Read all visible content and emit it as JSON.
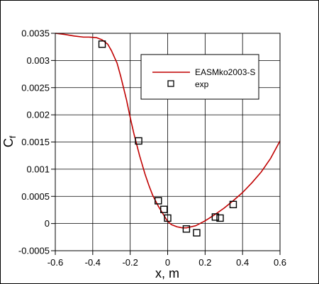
{
  "chart_data": {
    "type": "line",
    "xlabel": "x, m",
    "ylabel": "C",
    "ylabel_subscript": "f",
    "xlim": [
      -0.6,
      0.6
    ],
    "ylim": [
      -0.0005,
      0.0035
    ],
    "x_ticks": [
      -0.6,
      -0.4,
      -0.2,
      0,
      0.2,
      0.4,
      0.6
    ],
    "x_tick_labels": [
      "-0.6",
      "-0.4",
      "-0.2",
      "0",
      "0.2",
      "0.4",
      "0.6"
    ],
    "y_ticks": [
      -0.0005,
      0,
      0.0005,
      0.001,
      0.0015,
      0.002,
      0.0025,
      0.003,
      0.0035
    ],
    "y_tick_labels": [
      "-0.0005",
      "0",
      "0.0005",
      "0.001",
      "0.0015",
      "0.002",
      "0.0025",
      "0.003",
      "0.0035"
    ],
    "grid": true,
    "legend_position": "top-right",
    "series": [
      {
        "name": "EASMko2003-S",
        "kind": "line",
        "color": "#c00000",
        "x": [
          -0.6,
          -0.55,
          -0.5,
          -0.45,
          -0.42,
          -0.38,
          -0.35,
          -0.32,
          -0.3,
          -0.27,
          -0.25,
          -0.22,
          -0.2,
          -0.18,
          -0.15,
          -0.12,
          -0.1,
          -0.08,
          -0.05,
          -0.02,
          0.0,
          0.02,
          0.05,
          0.08,
          0.1,
          0.15,
          0.2,
          0.25,
          0.3,
          0.35,
          0.4,
          0.45,
          0.5,
          0.55,
          0.6
        ],
        "y": [
          0.0035,
          0.00348,
          0.00345,
          0.00343,
          0.00343,
          0.00342,
          0.00338,
          0.0033,
          0.00318,
          0.00295,
          0.0027,
          0.00228,
          0.00195,
          0.00165,
          0.00125,
          0.0009,
          0.0007,
          0.00052,
          0.00032,
          0.00015,
          4e-05,
          -2e-05,
          -6e-05,
          -8e-05,
          -8e-05,
          -4e-05,
          5e-05,
          0.00016,
          0.00028,
          0.00042,
          0.00057,
          0.00075,
          0.00095,
          0.0012,
          0.00152
        ]
      },
      {
        "name": "exp",
        "kind": "scatter",
        "marker": "square",
        "color": "#000000",
        "x": [
          -0.35,
          -0.155,
          -0.05,
          -0.02,
          0.0,
          0.1,
          0.155,
          0.255,
          0.28,
          0.35
        ],
        "y": [
          0.0033,
          0.00152,
          0.00042,
          0.00026,
          0.0001,
          -0.0001,
          -0.00017,
          0.00012,
          0.0001,
          0.00035
        ]
      }
    ]
  }
}
